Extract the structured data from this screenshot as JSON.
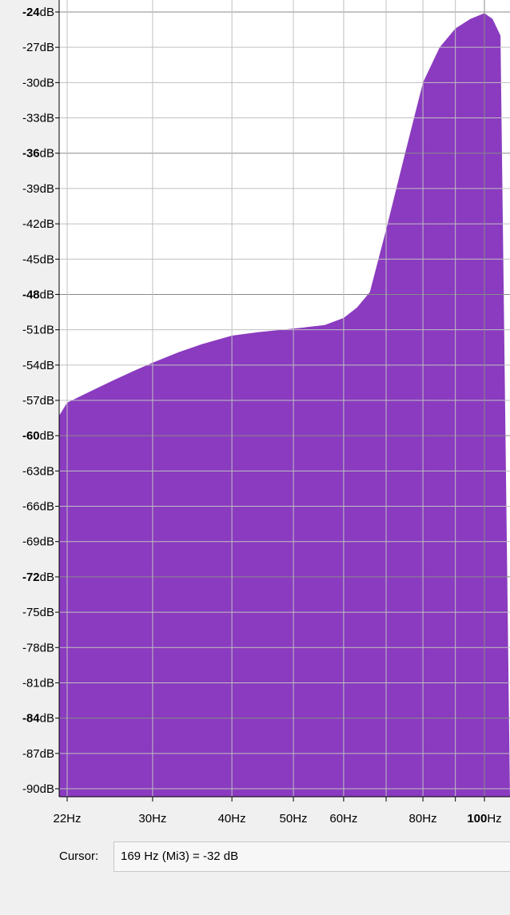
{
  "chart_data": {
    "type": "area",
    "color": "#8a3bbf",
    "x_scale": "log",
    "y_unit": "dB",
    "ylim": [
      -90,
      -23
    ],
    "xlim": [
      21,
      106
    ],
    "grid": true,
    "y_ticks": [
      {
        "value": -24,
        "label": "-24dB",
        "major": true
      },
      {
        "value": -27,
        "label": "-27dB",
        "major": false
      },
      {
        "value": -30,
        "label": "-30dB",
        "major": false
      },
      {
        "value": -33,
        "label": "-33dB",
        "major": false
      },
      {
        "value": -36,
        "label": "-36dB",
        "major": true
      },
      {
        "value": -39,
        "label": "-39dB",
        "major": false
      },
      {
        "value": -42,
        "label": "-42dB",
        "major": false
      },
      {
        "value": -45,
        "label": "-45dB",
        "major": false
      },
      {
        "value": -48,
        "label": "-48dB",
        "major": true
      },
      {
        "value": -51,
        "label": "-51dB",
        "major": false
      },
      {
        "value": -54,
        "label": "-54dB",
        "major": false
      },
      {
        "value": -57,
        "label": "-57dB",
        "major": false
      },
      {
        "value": -60,
        "label": "-60dB",
        "major": true
      },
      {
        "value": -63,
        "label": "-63dB",
        "major": false
      },
      {
        "value": -66,
        "label": "-66dB",
        "major": false
      },
      {
        "value": -69,
        "label": "-69dB",
        "major": false
      },
      {
        "value": -72,
        "label": "-72dB",
        "major": true
      },
      {
        "value": -75,
        "label": "-75dB",
        "major": false
      },
      {
        "value": -78,
        "label": "-78dB",
        "major": false
      },
      {
        "value": -81,
        "label": "-81dB",
        "major": false
      },
      {
        "value": -84,
        "label": "-84dB",
        "major": true
      },
      {
        "value": -87,
        "label": "-87dB",
        "major": false
      },
      {
        "value": -90,
        "label": "-90dB",
        "major": false
      }
    ],
    "x_ticks": [
      {
        "value": 22,
        "label": "22Hz",
        "major": false
      },
      {
        "value": 30,
        "label": "30Hz",
        "major": false
      },
      {
        "value": 40,
        "label": "40Hz",
        "major": false
      },
      {
        "value": 50,
        "label": "50Hz",
        "major": false
      },
      {
        "value": 60,
        "label": "60Hz",
        "major": false
      },
      {
        "value": 70,
        "label": "",
        "major": false
      },
      {
        "value": 80,
        "label": "80Hz",
        "major": false
      },
      {
        "value": 90,
        "label": "",
        "major": false
      },
      {
        "value": 100,
        "label": "100Hz",
        "major": true
      }
    ],
    "spectrum": {
      "x": [
        21,
        22,
        24,
        26,
        28,
        30,
        33,
        36,
        40,
        44,
        48,
        52,
        56,
        60,
        63,
        66,
        70,
        75,
        80,
        85,
        90,
        95,
        100,
        103,
        106
      ],
      "y": [
        -58.3,
        -57.2,
        -56.2,
        -55.3,
        -54.5,
        -53.8,
        -52.9,
        -52.2,
        -51.5,
        -51.2,
        -51.0,
        -50.8,
        -50.6,
        -50.0,
        -49.1,
        -47.8,
        -42.5,
        -36.0,
        -30.0,
        -27.0,
        -25.4,
        -24.6,
        -24.1,
        -24.6,
        -26.0
      ]
    }
  },
  "cursor": {
    "label": "Cursor:",
    "value": "169 Hz (Mi3) = -32 dB"
  }
}
